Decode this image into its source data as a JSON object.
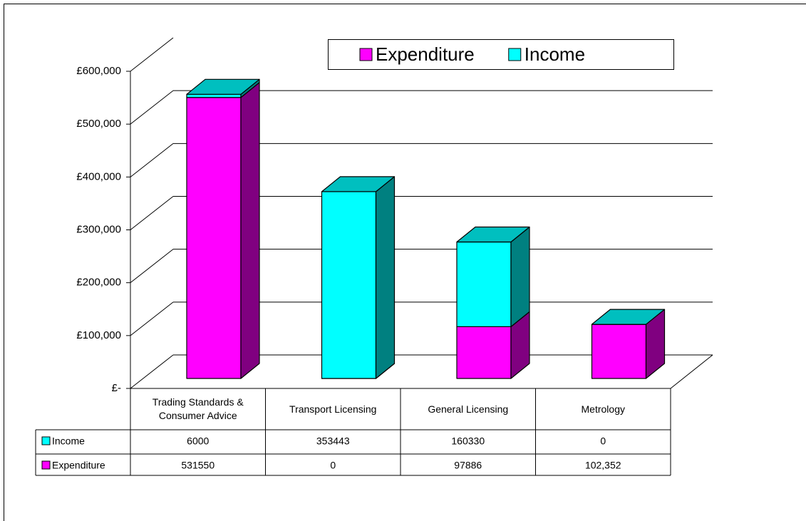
{
  "chart_data": {
    "type": "bar",
    "stacked": true,
    "categories": [
      "Trading Standards & Consumer Advice",
      "Transport Licensing",
      "General Licensing",
      "Metrology"
    ],
    "series": [
      {
        "name": "Expenditure",
        "color": "#ff00ff",
        "values": [
          531550,
          0,
          97886,
          102352
        ],
        "value_labels": [
          "531550",
          "0",
          "97886",
          "102,352"
        ]
      },
      {
        "name": "Income",
        "color": "#00ffff",
        "values": [
          6000,
          353443,
          160330,
          0
        ]
      }
    ],
    "ylim": [
      0,
      600000
    ],
    "yticks": [
      {
        "value": 0,
        "label": "£-"
      },
      {
        "value": 100000,
        "label": "£100,000"
      },
      {
        "value": 200000,
        "label": "£200,000"
      },
      {
        "value": 300000,
        "label": "£300,000"
      },
      {
        "value": 400000,
        "label": "£400,000"
      },
      {
        "value": 500000,
        "label": "£500,000"
      },
      {
        "value": 600000,
        "label": "£600,000"
      }
    ],
    "grid": true,
    "legend": "top"
  }
}
